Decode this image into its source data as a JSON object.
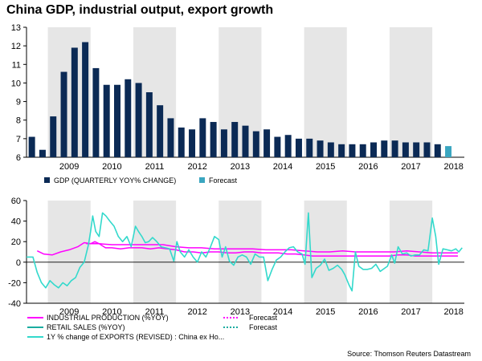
{
  "title": "China GDP, industrial output, export growth",
  "source": "Source: Thomson Reuters Datastream",
  "colors": {
    "shade": "#e6e6e6",
    "gdp_bar": "#0b2a55",
    "forecast_bar": "#3aa6c0",
    "industrial": "#ff00ff",
    "retail": "#1aaca0",
    "exports": "#33d9cc"
  },
  "chart_data": [
    {
      "type": "bar",
      "ylim": [
        6,
        13
      ],
      "yticks": [
        "6",
        "7",
        "8",
        "9",
        "10",
        "11",
        "12",
        "13"
      ],
      "x_start": 2008.5,
      "x_end": 2018.75,
      "year_labels": [
        "2009",
        "2010",
        "2011",
        "2012",
        "2013",
        "2014",
        "2015",
        "2016",
        "2017",
        "2018"
      ],
      "legend": [
        {
          "label": "GDP (QUARTERLY YOY% CHANGE)"
        },
        {
          "label": "Forecast"
        }
      ],
      "series": [
        {
          "name": "GDP (QUARTERLY YOY% CHANGE)",
          "start": 2008.5,
          "values": [
            7.1,
            6.4,
            8.2,
            10.6,
            11.9,
            12.2,
            10.8,
            9.9,
            9.9,
            10.2,
            10.0,
            9.5,
            8.8,
            8.1,
            7.6,
            7.5,
            8.1,
            7.9,
            7.5,
            7.9,
            7.7,
            7.4,
            7.5,
            7.1,
            7.2,
            7.0,
            7.0,
            6.9,
            6.8,
            6.7,
            6.7,
            6.7,
            6.8,
            6.9,
            6.9,
            6.8,
            6.8,
            6.8,
            6.7
          ]
        },
        {
          "name": "Forecast",
          "start": 2018.25,
          "values": [
            6.6
          ]
        }
      ]
    },
    {
      "type": "line",
      "ylim": [
        -40,
        60
      ],
      "yticks": [
        "-40",
        "-20",
        "0",
        "20",
        "40",
        "60"
      ],
      "x_start": 2008.5,
      "x_end": 2018.75,
      "year_labels": [
        "2009",
        "2010",
        "2011",
        "2012",
        "2013",
        "2014",
        "2015",
        "2016",
        "2017",
        "2018"
      ],
      "legend": [
        {
          "label": "INDUSTRIAL PRODUCTION (%YOY)",
          "style": "solid",
          "color_key": "industrial"
        },
        {
          "label": "Forecast",
          "style": "dotted",
          "color_key": "industrial"
        },
        {
          "label": "RETAIL SALES (%YOY)",
          "style": "solid",
          "color_key": "retail"
        },
        {
          "label": "Forecast",
          "style": "dotted",
          "color_key": "retail"
        },
        {
          "label": "1Y % change of EXPORTS (REVISED) : China ex Ho...",
          "style": "solid",
          "color_key": "exports"
        }
      ],
      "series": [
        {
          "name": "INDUSTRIAL PRODUCTION (%YOY)",
          "points": [
            [
              2008.75,
              11
            ],
            [
              2008.9,
              8
            ],
            [
              2009.1,
              7
            ],
            [
              2009.3,
              10
            ],
            [
              2009.5,
              12
            ],
            [
              2009.7,
              15
            ],
            [
              2009.85,
              19
            ],
            [
              2010.0,
              18
            ],
            [
              2010.1,
              20
            ],
            [
              2010.2,
              18
            ],
            [
              2010.35,
              14
            ],
            [
              2010.5,
              14
            ],
            [
              2010.7,
              13
            ],
            [
              2010.9,
              14
            ],
            [
              2011.0,
              14
            ],
            [
              2011.2,
              14
            ],
            [
              2011.4,
              13
            ],
            [
              2011.6,
              14
            ],
            [
              2011.8,
              13
            ],
            [
              2012.0,
              12
            ],
            [
              2012.2,
              10
            ],
            [
              2012.4,
              10
            ],
            [
              2012.6,
              9
            ],
            [
              2012.8,
              10
            ],
            [
              2013.0,
              10
            ],
            [
              2013.2,
              9
            ],
            [
              2013.4,
              9
            ],
            [
              2013.6,
              10
            ],
            [
              2013.8,
              10
            ],
            [
              2014.0,
              9
            ],
            [
              2014.2,
              9
            ],
            [
              2014.4,
              9
            ],
            [
              2014.6,
              8
            ],
            [
              2014.8,
              8
            ],
            [
              2015.0,
              7
            ],
            [
              2015.2,
              6
            ],
            [
              2015.4,
              6
            ],
            [
              2015.6,
              6
            ],
            [
              2015.8,
              6
            ],
            [
              2016.0,
              6
            ],
            [
              2016.2,
              6
            ],
            [
              2016.4,
              6
            ],
            [
              2016.6,
              6
            ],
            [
              2016.8,
              6
            ],
            [
              2017.0,
              6
            ],
            [
              2017.2,
              7
            ],
            [
              2017.4,
              7
            ],
            [
              2017.6,
              6
            ],
            [
              2017.8,
              6
            ],
            [
              2018.0,
              6
            ],
            [
              2018.2,
              6
            ],
            [
              2018.4,
              6
            ],
            [
              2018.6,
              6
            ]
          ]
        },
        {
          "name": "RETAIL SALES (%YOY)",
          "points": [
            [
              2009.9,
              18
            ],
            [
              2010.2,
              18
            ],
            [
              2010.5,
              17
            ],
            [
              2010.8,
              17
            ],
            [
              2011.1,
              17
            ],
            [
              2011.4,
              17
            ],
            [
              2011.7,
              17
            ],
            [
              2012.0,
              15
            ],
            [
              2012.3,
              14
            ],
            [
              2012.6,
              14
            ],
            [
              2012.9,
              13
            ],
            [
              2013.2,
              13
            ],
            [
              2013.5,
              13
            ],
            [
              2013.8,
              13
            ],
            [
              2014.1,
              12
            ],
            [
              2014.4,
              12
            ],
            [
              2014.7,
              12
            ],
            [
              2015.0,
              11
            ],
            [
              2015.3,
              10
            ],
            [
              2015.6,
              10
            ],
            [
              2015.9,
              11
            ],
            [
              2016.2,
              10
            ],
            [
              2016.5,
              10
            ],
            [
              2016.8,
              10
            ],
            [
              2017.1,
              10
            ],
            [
              2017.4,
              11
            ],
            [
              2017.7,
              10
            ],
            [
              2018.0,
              9
            ],
            [
              2018.3,
              9
            ],
            [
              2018.6,
              9
            ]
          ]
        },
        {
          "name": "1Y % change of EXPORTS (REVISED) : China ex Ho...",
          "points": [
            [
              2008.5,
              5
            ],
            [
              2008.65,
              5
            ],
            [
              2008.75,
              -10
            ],
            [
              2008.85,
              -20
            ],
            [
              2008.95,
              -25
            ],
            [
              2009.05,
              -18
            ],
            [
              2009.15,
              -22
            ],
            [
              2009.25,
              -25
            ],
            [
              2009.35,
              -20
            ],
            [
              2009.45,
              -23
            ],
            [
              2009.55,
              -18
            ],
            [
              2009.65,
              -15
            ],
            [
              2009.75,
              -5
            ],
            [
              2009.85,
              0
            ],
            [
              2009.95,
              17
            ],
            [
              2010.0,
              30
            ],
            [
              2010.05,
              45
            ],
            [
              2010.12,
              30
            ],
            [
              2010.2,
              25
            ],
            [
              2010.28,
              48
            ],
            [
              2010.36,
              45
            ],
            [
              2010.45,
              40
            ],
            [
              2010.55,
              35
            ],
            [
              2010.65,
              25
            ],
            [
              2010.75,
              20
            ],
            [
              2010.85,
              25
            ],
            [
              2010.95,
              15
            ],
            [
              2011.05,
              35
            ],
            [
              2011.12,
              30
            ],
            [
              2011.2,
              25
            ],
            [
              2011.28,
              19
            ],
            [
              2011.36,
              20
            ],
            [
              2011.45,
              24
            ],
            [
              2011.55,
              20
            ],
            [
              2011.65,
              15
            ],
            [
              2011.75,
              14
            ],
            [
              2011.85,
              13
            ],
            [
              2011.95,
              1
            ],
            [
              2012.02,
              20
            ],
            [
              2012.1,
              10
            ],
            [
              2012.2,
              5
            ],
            [
              2012.3,
              12
            ],
            [
              2012.4,
              5
            ],
            [
              2012.5,
              0
            ],
            [
              2012.6,
              10
            ],
            [
              2012.7,
              5
            ],
            [
              2012.8,
              14
            ],
            [
              2012.9,
              25
            ],
            [
              2013.0,
              22
            ],
            [
              2013.08,
              5
            ],
            [
              2013.16,
              15
            ],
            [
              2013.25,
              1
            ],
            [
              2013.35,
              -3
            ],
            [
              2013.45,
              5
            ],
            [
              2013.55,
              7
            ],
            [
              2013.65,
              5
            ],
            [
              2013.75,
              -2
            ],
            [
              2013.85,
              8
            ],
            [
              2013.95,
              5
            ],
            [
              2014.05,
              5
            ],
            [
              2014.15,
              -18
            ],
            [
              2014.25,
              -7
            ],
            [
              2014.35,
              2
            ],
            [
              2014.45,
              5
            ],
            [
              2014.55,
              10
            ],
            [
              2014.65,
              14
            ],
            [
              2014.75,
              15
            ],
            [
              2014.85,
              10
            ],
            [
              2014.95,
              8
            ],
            [
              2015.02,
              -2
            ],
            [
              2015.1,
              48
            ],
            [
              2015.18,
              -15
            ],
            [
              2015.28,
              -6
            ],
            [
              2015.38,
              -3
            ],
            [
              2015.48,
              3
            ],
            [
              2015.58,
              -8
            ],
            [
              2015.68,
              -6
            ],
            [
              2015.78,
              -3
            ],
            [
              2015.88,
              -7
            ],
            [
              2015.95,
              -12
            ],
            [
              2016.05,
              -22
            ],
            [
              2016.12,
              -28
            ],
            [
              2016.2,
              10
            ],
            [
              2016.28,
              -4
            ],
            [
              2016.38,
              -7
            ],
            [
              2016.48,
              -7
            ],
            [
              2016.58,
              -6
            ],
            [
              2016.68,
              -2
            ],
            [
              2016.78,
              -9
            ],
            [
              2016.88,
              -6
            ],
            [
              2016.95,
              -4
            ],
            [
              2017.05,
              7
            ],
            [
              2017.12,
              -1
            ],
            [
              2017.2,
              15
            ],
            [
              2017.3,
              8
            ],
            [
              2017.4,
              9
            ],
            [
              2017.5,
              6
            ],
            [
              2017.6,
              7
            ],
            [
              2017.7,
              7
            ],
            [
              2017.8,
              12
            ],
            [
              2017.9,
              11
            ],
            [
              2018.0,
              43
            ],
            [
              2018.08,
              25
            ],
            [
              2018.15,
              -2
            ],
            [
              2018.25,
              13
            ],
            [
              2018.35,
              12
            ],
            [
              2018.45,
              11
            ],
            [
              2018.55,
              13
            ],
            [
              2018.62,
              10
            ],
            [
              2018.7,
              14
            ]
          ]
        }
      ]
    }
  ]
}
